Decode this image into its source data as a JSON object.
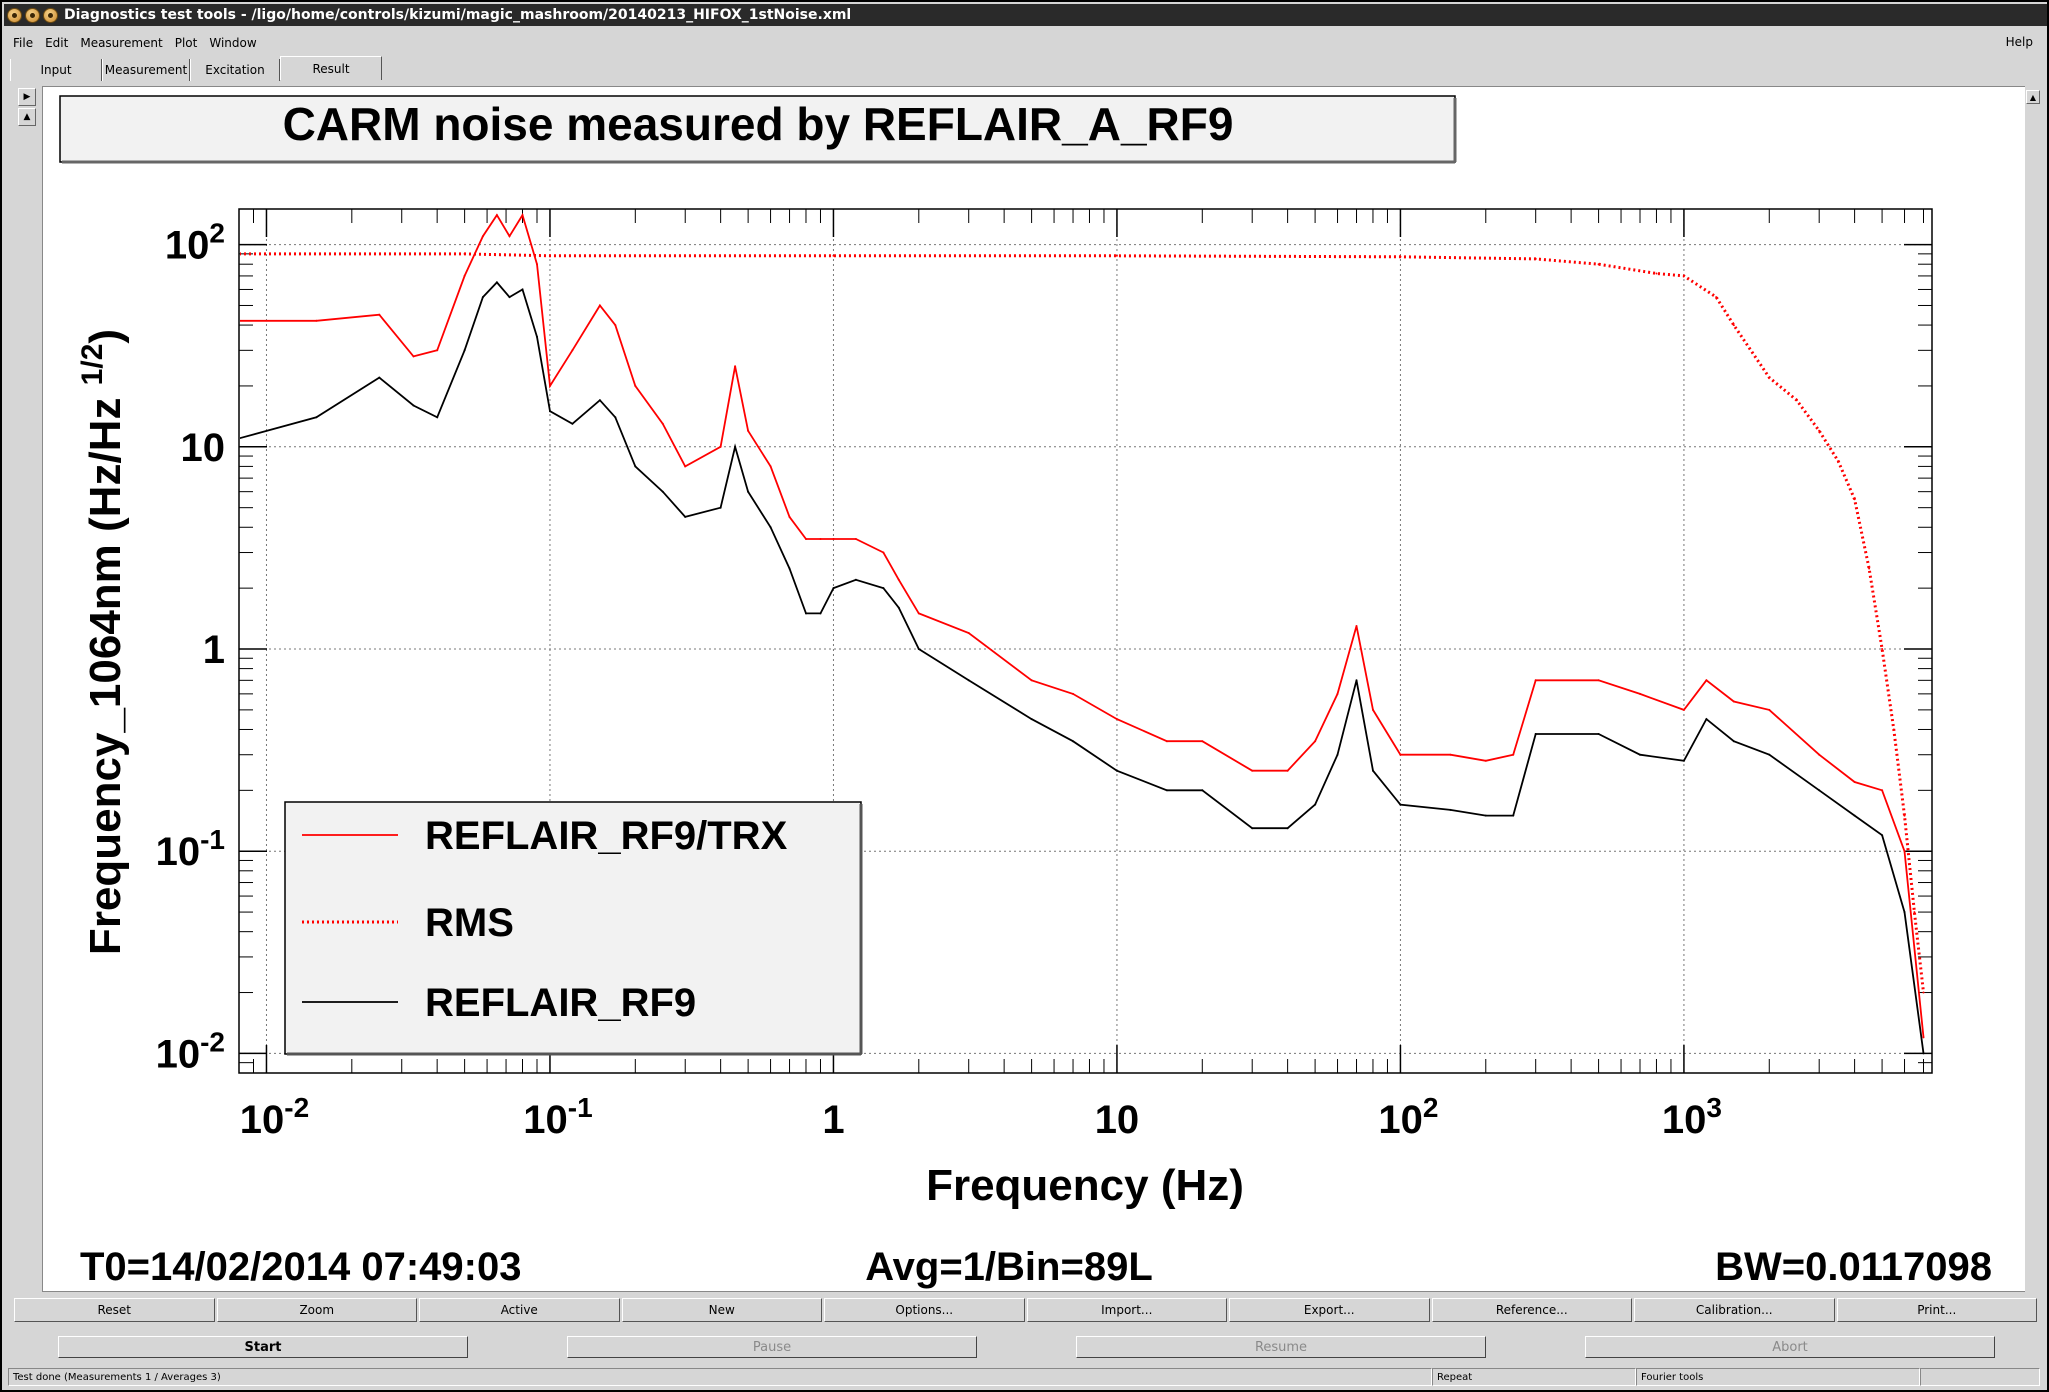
{
  "window": {
    "title": "Diagnostics test tools - /ligo/home/controls/kizumi/magic_mashroom/20140213_HIFOX_1stNoise.xml"
  },
  "menu": {
    "items": [
      "File",
      "Edit",
      "Measurement",
      "Plot",
      "Window"
    ],
    "help": "Help"
  },
  "tabs": [
    {
      "label": "Input"
    },
    {
      "label": "Measurement"
    },
    {
      "label": "Excitation"
    },
    {
      "label": "Result"
    }
  ],
  "plot": {
    "title": "CARM noise measured by REFLAIR_A_RF9",
    "info_t0": "T0=14/02/2014 07:49:03",
    "info_avg": "Avg=1/Bin=89L",
    "info_bw": "BW=0.0117098"
  },
  "chart_data": {
    "type": "line",
    "title": "CARM noise measured by REFLAIR_A_RF9",
    "xlabel": "Frequency (Hz)",
    "ylabel": "Frequency_1064nm (Hz/Hz^{1/2})",
    "x_scale": "log",
    "y_scale": "log",
    "xlim": [
      0.008,
      7500
    ],
    "ylim": [
      0.008,
      150
    ],
    "x_ticks": [
      "10^-2",
      "10^-1",
      "1",
      "10",
      "10^2",
      "10^3"
    ],
    "y_ticks": [
      "10^-2",
      "10^-1",
      "1",
      "10",
      "10^2"
    ],
    "grid": true,
    "legend_position": "bottom-left",
    "series": [
      {
        "name": "REFLAIR_RF9/TRX",
        "color": "#ff0000",
        "style": "solid",
        "x": [
          0.008,
          0.015,
          0.025,
          0.033,
          0.04,
          0.05,
          0.058,
          0.065,
          0.072,
          0.08,
          0.09,
          0.1,
          0.12,
          0.15,
          0.17,
          0.2,
          0.25,
          0.3,
          0.4,
          0.45,
          0.5,
          0.6,
          0.7,
          0.8,
          0.9,
          1.0,
          1.2,
          1.5,
          1.7,
          2,
          3,
          5,
          7,
          10,
          15,
          20,
          30,
          40,
          50,
          60,
          70,
          80,
          100,
          150,
          200,
          250,
          300,
          500,
          700,
          1000,
          1200,
          1500,
          2000,
          3000,
          4000,
          5000,
          6000,
          7000
        ],
        "values": [
          42,
          42,
          45,
          28,
          30,
          70,
          110,
          140,
          110,
          140,
          80,
          20,
          30,
          50,
          40,
          20,
          13,
          8,
          10,
          25,
          12,
          8,
          4.5,
          3.5,
          3.5,
          3.5,
          3.5,
          3,
          2.2,
          1.5,
          1.2,
          0.7,
          0.6,
          0.45,
          0.35,
          0.35,
          0.25,
          0.25,
          0.35,
          0.6,
          1.3,
          0.5,
          0.3,
          0.3,
          0.28,
          0.3,
          0.7,
          0.7,
          0.6,
          0.5,
          0.7,
          0.55,
          0.5,
          0.3,
          0.22,
          0.2,
          0.1,
          0.012
        ]
      },
      {
        "name": "RMS",
        "color": "#ff0000",
        "style": "dotted",
        "x": [
          0.008,
          0.05,
          0.1,
          1,
          10,
          100,
          300,
          500,
          800,
          1000,
          1300,
          1500,
          2000,
          2500,
          3000,
          3500,
          4000,
          4500,
          5000,
          5500,
          6000,
          6500,
          7000
        ],
        "values": [
          90,
          90,
          88,
          88,
          88,
          87,
          85,
          80,
          72,
          70,
          55,
          40,
          22,
          17,
          12,
          8.5,
          5.5,
          2.5,
          1,
          0.4,
          0.15,
          0.05,
          0.02
        ]
      },
      {
        "name": "REFLAIR_RF9",
        "color": "#000000",
        "style": "solid",
        "x": [
          0.008,
          0.015,
          0.025,
          0.033,
          0.04,
          0.05,
          0.058,
          0.065,
          0.072,
          0.08,
          0.09,
          0.1,
          0.12,
          0.15,
          0.17,
          0.2,
          0.25,
          0.3,
          0.4,
          0.45,
          0.5,
          0.6,
          0.7,
          0.8,
          0.9,
          1.0,
          1.2,
          1.5,
          1.7,
          2,
          3,
          5,
          7,
          10,
          15,
          20,
          30,
          40,
          50,
          60,
          70,
          80,
          100,
          150,
          200,
          250,
          300,
          500,
          700,
          1000,
          1200,
          1500,
          2000,
          3000,
          4000,
          5000,
          6000,
          7000
        ],
        "values": [
          11,
          14,
          22,
          16,
          14,
          30,
          55,
          65,
          55,
          60,
          35,
          15,
          13,
          17,
          14,
          8,
          6,
          4.5,
          5,
          10,
          6,
          4,
          2.5,
          1.5,
          1.5,
          2,
          2.2,
          2,
          1.6,
          1.0,
          0.7,
          0.45,
          0.35,
          0.25,
          0.2,
          0.2,
          0.13,
          0.13,
          0.17,
          0.3,
          0.7,
          0.25,
          0.17,
          0.16,
          0.15,
          0.15,
          0.38,
          0.38,
          0.3,
          0.28,
          0.45,
          0.35,
          0.3,
          0.2,
          0.15,
          0.12,
          0.05,
          0.01
        ]
      }
    ]
  },
  "buttons_row1": [
    "Reset",
    "Zoom",
    "Active",
    "New",
    "Options...",
    "Import...",
    "Export...",
    "Reference...",
    "Calibration...",
    "Print..."
  ],
  "buttons_row2": [
    {
      "label": "Start",
      "enabled": true
    },
    {
      "label": "Pause",
      "enabled": false
    },
    {
      "label": "Resume",
      "enabled": false
    },
    {
      "label": "Abort",
      "enabled": false
    }
  ],
  "status": {
    "message": "Test done (Measurements 1 / Averages 3)",
    "repeat": "Repeat",
    "mode": "Fourier tools"
  }
}
